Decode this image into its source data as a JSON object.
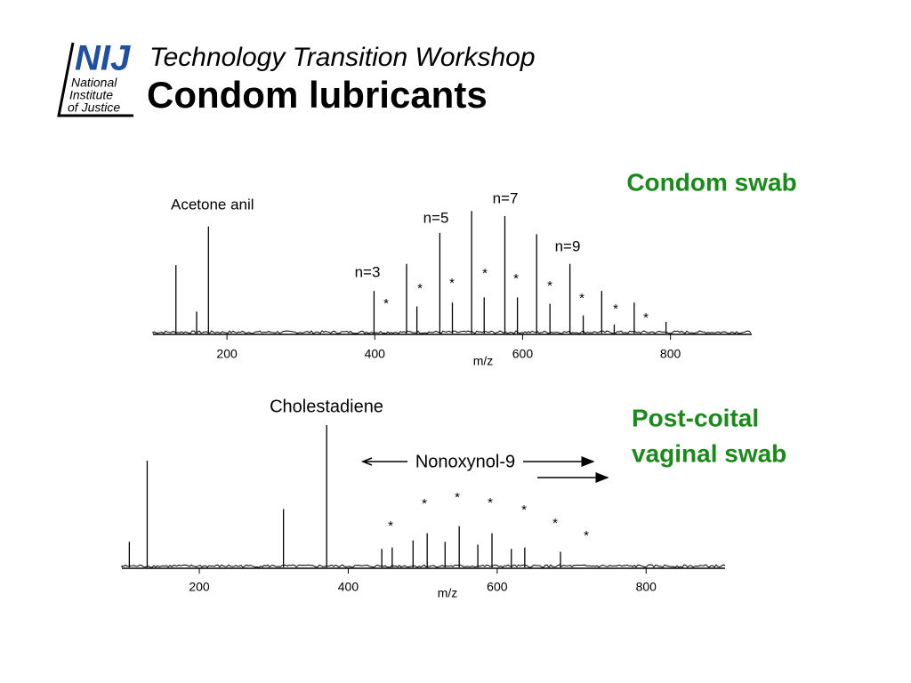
{
  "header": {
    "logo": "NIJ",
    "logo_lines": [
      "National",
      "Institute",
      "of Justice"
    ],
    "subtitle": "Technology Transition Workshop",
    "title": "Condom lubricants"
  },
  "chart_data": [
    {
      "type": "stem",
      "label": [
        "Condom swab"
      ],
      "xlabel": "m/z",
      "x": [
        131,
        159,
        175,
        399,
        443,
        457,
        488,
        505,
        531,
        548,
        576,
        593,
        619,
        637,
        664,
        682,
        707,
        724,
        751,
        794
      ],
      "values": [
        53,
        17,
        83,
        33,
        54,
        21,
        78,
        24,
        95,
        28,
        91,
        28,
        77,
        23,
        54,
        14,
        33,
        7,
        24,
        9
      ],
      "xlim": [
        100,
        910
      ],
      "ylim": [
        0,
        100
      ],
      "xticks": [
        200,
        400,
        600,
        800
      ],
      "annotations": [
        "Acetone anil",
        "n=3",
        "n=5",
        "n=7",
        "n=9"
      ],
      "peak_marks": [
        "*",
        "*",
        "*",
        "*",
        "*",
        "*",
        "*",
        "*",
        "*"
      ]
    },
    {
      "type": "stem",
      "label": [
        "Post-coital",
        "vaginal swab"
      ],
      "xlabel": "m/z",
      "x": [
        106,
        130,
        313,
        371,
        445,
        459,
        487,
        506,
        530,
        549,
        574,
        593,
        619,
        637,
        685
      ],
      "values": [
        18,
        75,
        41,
        100,
        13,
        14,
        19,
        24,
        18,
        29,
        16,
        24,
        13,
        14,
        11
      ],
      "xlim": [
        96,
        906
      ],
      "ylim": [
        0,
        100
      ],
      "xticks": [
        200,
        400,
        600,
        800
      ],
      "annotations": [
        "Cholestadiene",
        "Nonoxynol-9"
      ],
      "peak_marks": [
        "*",
        "*",
        "*",
        "*",
        "*",
        "*",
        "*"
      ]
    }
  ]
}
